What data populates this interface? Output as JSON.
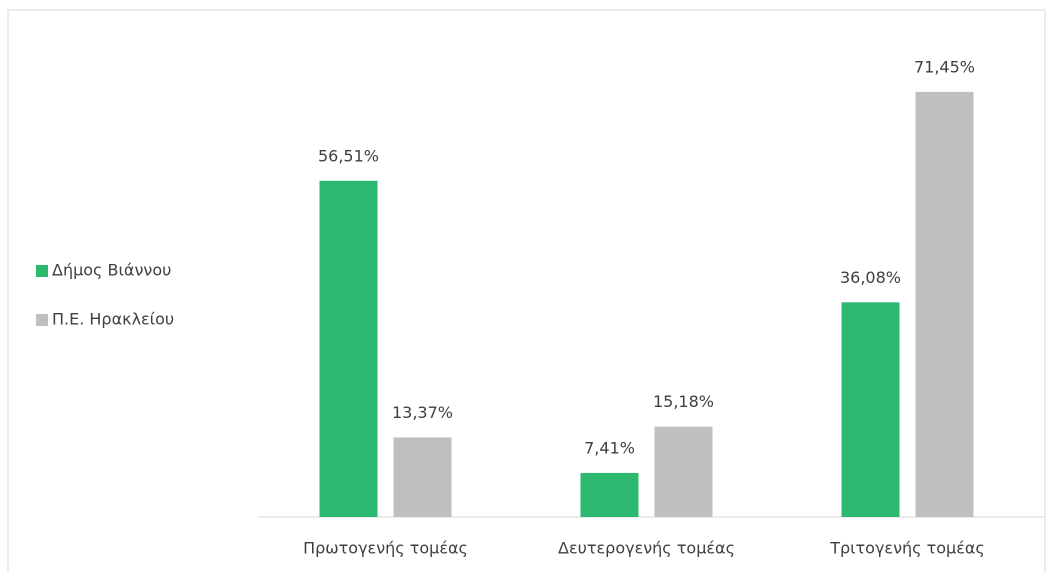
{
  "chart_data": {
    "type": "bar",
    "categories": [
      "Πρωτογενής τομέας",
      "Δευτερογενής τομέας",
      "Τριτογενής τομέας"
    ],
    "series": [
      {
        "name": "Δήμος Βιάννου",
        "color": "#2db870",
        "values": [
          56.51,
          7.41,
          36.08
        ],
        "value_labels": [
          "56,51%",
          "7,41%",
          "36,08%"
        ]
      },
      {
        "name": "Π.Ε. Ηρακλείου",
        "color": "#bfbfbf",
        "values": [
          13.37,
          15.18,
          71.45
        ],
        "value_labels": [
          "13,37%",
          "15,18%",
          "71,45%"
        ]
      }
    ],
    "ylim": [
      0,
      80
    ],
    "legend": "left"
  }
}
